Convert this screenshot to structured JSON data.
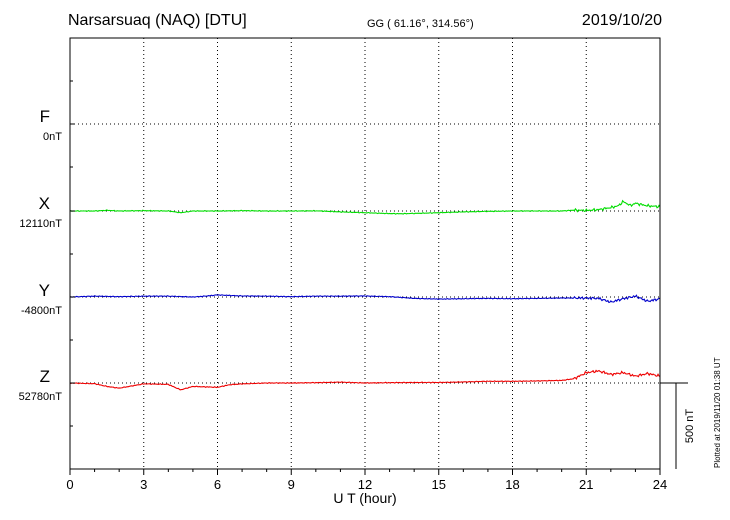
{
  "header": {
    "station": "Narsarsuaq (NAQ)  [DTU]",
    "coords": "GG ( 61.16°, 314.56°)",
    "date": "2019/10/20"
  },
  "plotted_note": "Plotted at 2019/11/20 01:38 UT",
  "chart_data": {
    "type": "line",
    "xlabel": "U T (hour)",
    "xlim": [
      0,
      24
    ],
    "xticks": [
      0,
      3,
      6,
      9,
      12,
      15,
      18,
      21,
      24
    ],
    "scale_bar": "500 nT",
    "scale_bar_nT": 500,
    "grid": true,
    "series": [
      {
        "name": "F",
        "baseline_label": "0nT",
        "baseline_nT": 0,
        "color": "#f2a000",
        "values": []
      },
      {
        "name": "X",
        "baseline_label": "12110nT",
        "baseline_nT": 12110,
        "color": "#00dd00",
        "x": [
          0,
          1,
          1.5,
          2,
          3,
          4,
          4.5,
          5,
          6,
          7,
          8,
          9,
          10,
          11,
          12,
          13,
          13.5,
          14,
          15,
          16,
          17,
          18,
          19,
          20,
          20.5,
          21,
          21.5,
          22,
          22.3,
          22.5,
          22.8,
          23,
          23.5,
          24
        ],
        "values": [
          0,
          0,
          4,
          0,
          2,
          0,
          -10,
          0,
          0,
          2,
          0,
          0,
          1,
          -5,
          -10,
          -15,
          -16,
          -14,
          -10,
          -5,
          -2,
          0,
          0,
          0,
          5,
          3,
          8,
          20,
          30,
          55,
          32,
          45,
          30,
          25
        ]
      },
      {
        "name": "Y",
        "baseline_label": "-4800nT",
        "baseline_nT": -4800,
        "color": "#0000cc",
        "x": [
          0,
          1,
          2,
          3,
          4,
          5,
          5.5,
          6,
          7,
          8,
          9,
          10,
          11,
          12,
          13,
          14,
          15,
          16,
          17,
          18,
          19,
          20,
          21,
          21.5,
          22,
          22.5,
          23,
          23.5,
          24
        ],
        "values": [
          0,
          5,
          2,
          5,
          5,
          0,
          5,
          12,
          6,
          5,
          2,
          5,
          5,
          6,
          2,
          -8,
          -12,
          -10,
          -8,
          -10,
          -8,
          -6,
          -6,
          -8,
          -30,
          -10,
          5,
          -25,
          -10
        ]
      },
      {
        "name": "Z",
        "baseline_label": "52780nT",
        "baseline_nT": 52780,
        "color": "#ee0000",
        "x": [
          0,
          1,
          1.5,
          2,
          3,
          4,
          4.5,
          5,
          6,
          6.5,
          7,
          8,
          9,
          10,
          11,
          12,
          13,
          14,
          15,
          16,
          17,
          18,
          19,
          20,
          20.5,
          21,
          21.5,
          22,
          22.5,
          23,
          23.5,
          24
        ],
        "values": [
          0,
          -4,
          -20,
          -30,
          -5,
          -8,
          -40,
          -20,
          -25,
          -10,
          -5,
          0,
          0,
          2,
          5,
          0,
          2,
          3,
          3,
          6,
          10,
          10,
          12,
          15,
          25,
          60,
          70,
          50,
          60,
          40,
          55,
          40
        ]
      }
    ]
  }
}
